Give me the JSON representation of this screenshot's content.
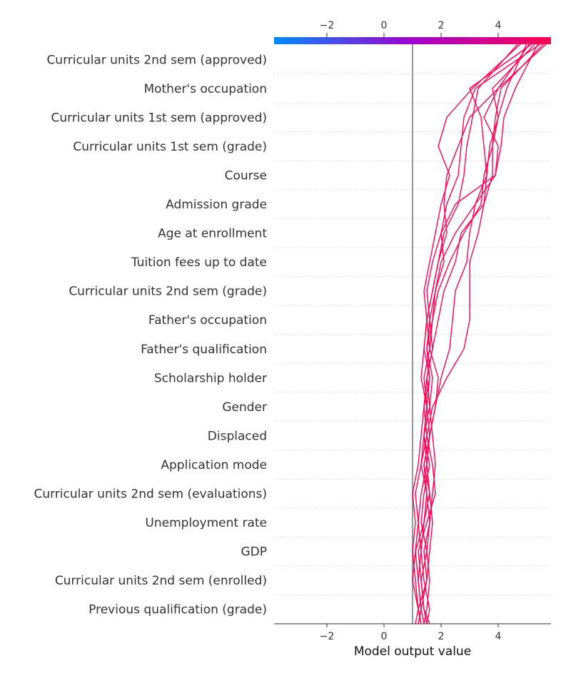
{
  "chart_data": {
    "type": "line",
    "subtype": "shap-decision-plot",
    "xlabel": "Model output value",
    "xlim": [
      -3.85,
      5.85
    ],
    "xticks": [
      -2,
      0,
      2,
      4
    ],
    "base_value": 1.0,
    "colorbar": {
      "min_color": "#008bfb",
      "mid_color": "#a100cc",
      "max_color": "#ff0052",
      "ticks": [
        -2,
        0,
        2,
        4
      ]
    },
    "line_color": "#ff0052",
    "features": [
      "Curricular units 2nd sem (approved)",
      "Mother's occupation",
      "Curricular units 1st sem (approved)",
      "Curricular units 1st sem (grade)",
      "Course",
      "Admission grade",
      "Age at enrollment",
      "Tuition fees up to date",
      "Curricular units 2nd sem (grade)",
      "Father's occupation",
      "Father's qualification",
      "Scholarship holder",
      "Gender",
      "Displaced",
      "Application mode",
      "Curricular units 2nd sem (evaluations)",
      "Unemployment rate",
      "GDP",
      "Curricular units 2nd sem (enrolled)",
      "Previous qualification (grade)"
    ],
    "series": [
      {
        "values": [
          1.2,
          1.3,
          1.2,
          1.1,
          1.4,
          1.5,
          1.4,
          1.6,
          1.5,
          1.3,
          1.4,
          1.5,
          1.7,
          1.9,
          2.1,
          2.6,
          2.8,
          2.9,
          3.1,
          3.3,
          4.7
        ]
      },
      {
        "values": [
          1.3,
          1.2,
          1.1,
          1.0,
          1.1,
          1.0,
          1.2,
          1.3,
          1.4,
          1.6,
          1.5,
          1.7,
          1.9,
          2.3,
          2.8,
          3.4,
          3.5,
          3.8,
          4.0,
          4.3,
          5.0
        ]
      },
      {
        "values": [
          1.4,
          1.3,
          1.2,
          1.3,
          1.2,
          1.1,
          1.3,
          1.5,
          1.4,
          1.5,
          1.7,
          1.6,
          1.5,
          1.7,
          2.0,
          2.2,
          2.6,
          2.7,
          2.8,
          3.2,
          5.5
        ]
      },
      {
        "values": [
          1.5,
          1.6,
          1.4,
          1.3,
          1.4,
          1.6,
          1.5,
          1.4,
          1.6,
          1.7,
          1.5,
          1.6,
          1.8,
          2.0,
          2.5,
          3.2,
          3.6,
          3.7,
          4.0,
          3.8,
          5.3
        ]
      },
      {
        "values": [
          1.6,
          1.4,
          1.3,
          1.2,
          1.5,
          1.8,
          1.7,
          1.5,
          1.7,
          2.2,
          2.8,
          3.0,
          3.0,
          3.0,
          3.3,
          3.5,
          3.8,
          3.8,
          3.9,
          4.1,
          5.6
        ]
      },
      {
        "values": [
          1.1,
          1.2,
          1.5,
          1.6,
          1.7,
          1.6,
          1.4,
          1.6,
          1.8,
          2.0,
          2.3,
          2.4,
          2.5,
          2.9,
          3.0,
          3.2,
          3.9,
          4.1,
          4.2,
          4.6,
          5.4
        ]
      },
      {
        "values": [
          1.2,
          1.3,
          1.5,
          1.4,
          1.6,
          1.7,
          1.8,
          1.7,
          1.6,
          1.5,
          1.7,
          1.9,
          2.1,
          2.5,
          2.7,
          3.5,
          3.6,
          3.5,
          3.4,
          3.0,
          5.2
        ]
      },
      {
        "values": [
          1.3,
          1.2,
          1.0,
          1.1,
          1.2,
          1.3,
          1.5,
          1.6,
          1.8,
          1.9,
          1.6,
          1.5,
          1.4,
          1.6,
          1.8,
          2.0,
          2.3,
          1.9,
          2.2,
          3.1,
          4.8
        ]
      },
      {
        "values": [
          1.4,
          1.5,
          1.6,
          1.5,
          1.3,
          1.4,
          1.6,
          1.4,
          1.5,
          1.6,
          1.4,
          1.5,
          1.7,
          1.9,
          2.2,
          2.1,
          2.2,
          2.6,
          3.0,
          4.0,
          5.1
        ]
      },
      {
        "values": [
          1.5,
          1.4,
          1.3,
          1.5,
          1.6,
          1.5,
          1.3,
          1.4,
          1.5,
          1.4,
          1.6,
          1.7,
          1.8,
          2.1,
          2.0,
          2.5,
          3.9,
          4.0,
          3.5,
          4.0,
          5.7
        ]
      }
    ]
  }
}
